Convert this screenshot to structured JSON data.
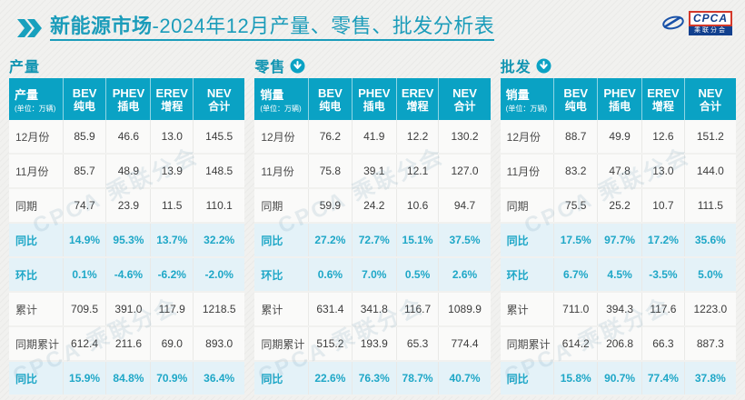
{
  "title": {
    "prefix": "新能源市场",
    "suffix": "-2024年12月产量、零售、批发分析表"
  },
  "logo": {
    "brand": "CPCA",
    "brand_sub": "乘联分会"
  },
  "watermark": "CPCA 乘联分会",
  "colors": {
    "header_teal": "#0aa2c4",
    "title_teal": "#1b9cba",
    "section_label_teal": "#1295b2",
    "highlight_row_bg": "#e4f2f8",
    "highlight_text": "#1ea7c7",
    "logo_blue": "#12408e",
    "logo_red": "#d4392a"
  },
  "columns": [
    {
      "line1": "BEV",
      "line2": "纯电"
    },
    {
      "line1": "PHEV",
      "line2": "插电"
    },
    {
      "line1": "EREV",
      "line2": "增程"
    },
    {
      "line1": "NEV",
      "line2": "合计"
    }
  ],
  "sections": [
    {
      "label": "产量",
      "icon": null,
      "header_label": "产量",
      "header_note": "(单位：万辆)",
      "rows": [
        {
          "label": "12月份",
          "values": [
            "85.9",
            "46.6",
            "13.0",
            "145.5"
          ],
          "highlight": false
        },
        {
          "label": "11月份",
          "values": [
            "85.7",
            "48.9",
            "13.9",
            "148.5"
          ],
          "highlight": false
        },
        {
          "label": "同期",
          "values": [
            "74.7",
            "23.9",
            "11.5",
            "110.1"
          ],
          "highlight": false
        },
        {
          "label": "同比",
          "values": [
            "14.9%",
            "95.3%",
            "13.7%",
            "32.2%"
          ],
          "highlight": true
        },
        {
          "label": "环比",
          "values": [
            "0.1%",
            "-4.6%",
            "-6.2%",
            "-2.0%"
          ],
          "highlight": true
        },
        {
          "label": "累计",
          "values": [
            "709.5",
            "391.0",
            "117.9",
            "1218.5"
          ],
          "highlight": false
        },
        {
          "label": "同期累计",
          "values": [
            "612.4",
            "211.6",
            "69.0",
            "893.0"
          ],
          "highlight": false
        },
        {
          "label": "同比",
          "values": [
            "15.9%",
            "84.8%",
            "70.9%",
            "36.4%"
          ],
          "highlight": true
        }
      ]
    },
    {
      "label": "零售",
      "icon": "down-arrow",
      "header_label": "销量",
      "header_note": "(单位：万辆)",
      "rows": [
        {
          "label": "12月份",
          "values": [
            "76.2",
            "41.9",
            "12.2",
            "130.2"
          ],
          "highlight": false
        },
        {
          "label": "11月份",
          "values": [
            "75.8",
            "39.1",
            "12.1",
            "127.0"
          ],
          "highlight": false
        },
        {
          "label": "同期",
          "values": [
            "59.9",
            "24.2",
            "10.6",
            "94.7"
          ],
          "highlight": false
        },
        {
          "label": "同比",
          "values": [
            "27.2%",
            "72.7%",
            "15.1%",
            "37.5%"
          ],
          "highlight": true
        },
        {
          "label": "环比",
          "values": [
            "0.6%",
            "7.0%",
            "0.5%",
            "2.6%"
          ],
          "highlight": true
        },
        {
          "label": "累计",
          "values": [
            "631.4",
            "341.8",
            "116.7",
            "1089.9"
          ],
          "highlight": false
        },
        {
          "label": "同期累计",
          "values": [
            "515.2",
            "193.9",
            "65.3",
            "774.4"
          ],
          "highlight": false
        },
        {
          "label": "同比",
          "values": [
            "22.6%",
            "76.3%",
            "78.7%",
            "40.7%"
          ],
          "highlight": true
        }
      ]
    },
    {
      "label": "批发",
      "icon": "down-arrow",
      "header_label": "销量",
      "header_note": "(单位：万辆)",
      "rows": [
        {
          "label": "12月份",
          "values": [
            "88.7",
            "49.9",
            "12.6",
            "151.2"
          ],
          "highlight": false
        },
        {
          "label": "11月份",
          "values": [
            "83.2",
            "47.8",
            "13.0",
            "144.0"
          ],
          "highlight": false
        },
        {
          "label": "同期",
          "values": [
            "75.5",
            "25.2",
            "10.7",
            "111.5"
          ],
          "highlight": false
        },
        {
          "label": "同比",
          "values": [
            "17.5%",
            "97.7%",
            "17.2%",
            "35.6%"
          ],
          "highlight": true
        },
        {
          "label": "环比",
          "values": [
            "6.7%",
            "4.5%",
            "-3.5%",
            "5.0%"
          ],
          "highlight": true
        },
        {
          "label": "累计",
          "values": [
            "711.0",
            "394.3",
            "117.6",
            "1223.0"
          ],
          "highlight": false
        },
        {
          "label": "同期累计",
          "values": [
            "614.2",
            "206.8",
            "66.3",
            "887.3"
          ],
          "highlight": false
        },
        {
          "label": "同比",
          "values": [
            "15.8%",
            "90.7%",
            "77.4%",
            "37.8%"
          ],
          "highlight": true
        }
      ]
    }
  ],
  "chart_data": [
    {
      "type": "table",
      "title": "产量",
      "unit": "万辆",
      "columns": [
        "产量",
        "BEV 纯电",
        "PHEV 插电",
        "EREV 增程",
        "NEV 合计"
      ],
      "rows": [
        [
          "12月份",
          85.9,
          46.6,
          13.0,
          145.5
        ],
        [
          "11月份",
          85.7,
          48.9,
          13.9,
          148.5
        ],
        [
          "同期",
          74.7,
          23.9,
          11.5,
          110.1
        ],
        [
          "同比",
          "14.9%",
          "95.3%",
          "13.7%",
          "32.2%"
        ],
        [
          "环比",
          "0.1%",
          "-4.6%",
          "-6.2%",
          "-2.0%"
        ],
        [
          "累计",
          709.5,
          391.0,
          117.9,
          1218.5
        ],
        [
          "同期累计",
          612.4,
          211.6,
          69.0,
          893.0
        ],
        [
          "同比",
          "15.9%",
          "84.8%",
          "70.9%",
          "36.4%"
        ]
      ]
    },
    {
      "type": "table",
      "title": "零售",
      "unit": "万辆",
      "columns": [
        "销量",
        "BEV 纯电",
        "PHEV 插电",
        "EREV 增程",
        "NEV 合计"
      ],
      "rows": [
        [
          "12月份",
          76.2,
          41.9,
          12.2,
          130.2
        ],
        [
          "11月份",
          75.8,
          39.1,
          12.1,
          127.0
        ],
        [
          "同期",
          59.9,
          24.2,
          10.6,
          94.7
        ],
        [
          "同比",
          "27.2%",
          "72.7%",
          "15.1%",
          "37.5%"
        ],
        [
          "环比",
          "0.6%",
          "7.0%",
          "0.5%",
          "2.6%"
        ],
        [
          "累计",
          631.4,
          341.8,
          116.7,
          1089.9
        ],
        [
          "同期累计",
          515.2,
          193.9,
          65.3,
          774.4
        ],
        [
          "同比",
          "22.6%",
          "76.3%",
          "78.7%",
          "40.7%"
        ]
      ]
    },
    {
      "type": "table",
      "title": "批发",
      "unit": "万辆",
      "columns": [
        "销量",
        "BEV 纯电",
        "PHEV 插电",
        "EREV 增程",
        "NEV 合计"
      ],
      "rows": [
        [
          "12月份",
          88.7,
          49.9,
          12.6,
          151.2
        ],
        [
          "11月份",
          83.2,
          47.8,
          13.0,
          144.0
        ],
        [
          "同期",
          75.5,
          25.2,
          10.7,
          111.5
        ],
        [
          "同比",
          "17.5%",
          "97.7%",
          "17.2%",
          "35.6%"
        ],
        [
          "环比",
          "6.7%",
          "4.5%",
          "-3.5%",
          "5.0%"
        ],
        [
          "累计",
          711.0,
          394.3,
          117.6,
          1223.0
        ],
        [
          "同期累计",
          614.2,
          206.8,
          66.3,
          887.3
        ],
        [
          "同比",
          "15.8%",
          "90.7%",
          "77.4%",
          "37.8%"
        ]
      ]
    }
  ]
}
